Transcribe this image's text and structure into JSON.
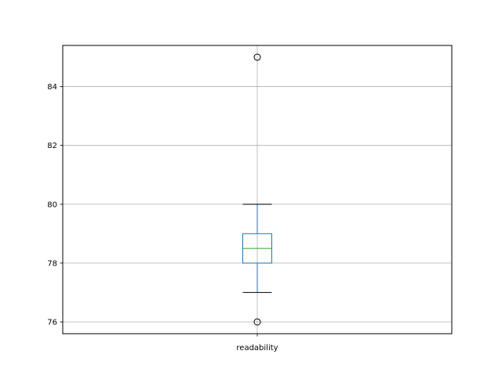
{
  "chart_data": {
    "type": "boxplot",
    "title": "",
    "xlabel": "",
    "ylabel": "",
    "categories": [
      "readability"
    ],
    "ylim": [
      75.6,
      85.4
    ],
    "yticks": [
      76,
      78,
      80,
      82,
      84
    ],
    "grid": true,
    "boxes": [
      {
        "label": "readability",
        "whisker_low": 77,
        "q1": 78,
        "median": 78.5,
        "q3": 79,
        "whisker_high": 80,
        "outliers": [
          76,
          85
        ]
      }
    ],
    "colors": {
      "box": "#1f77b4",
      "median": "#2ca02c",
      "whisker_cap": "#000000",
      "grid": "#b0b0b0",
      "axes": "#000000"
    }
  }
}
